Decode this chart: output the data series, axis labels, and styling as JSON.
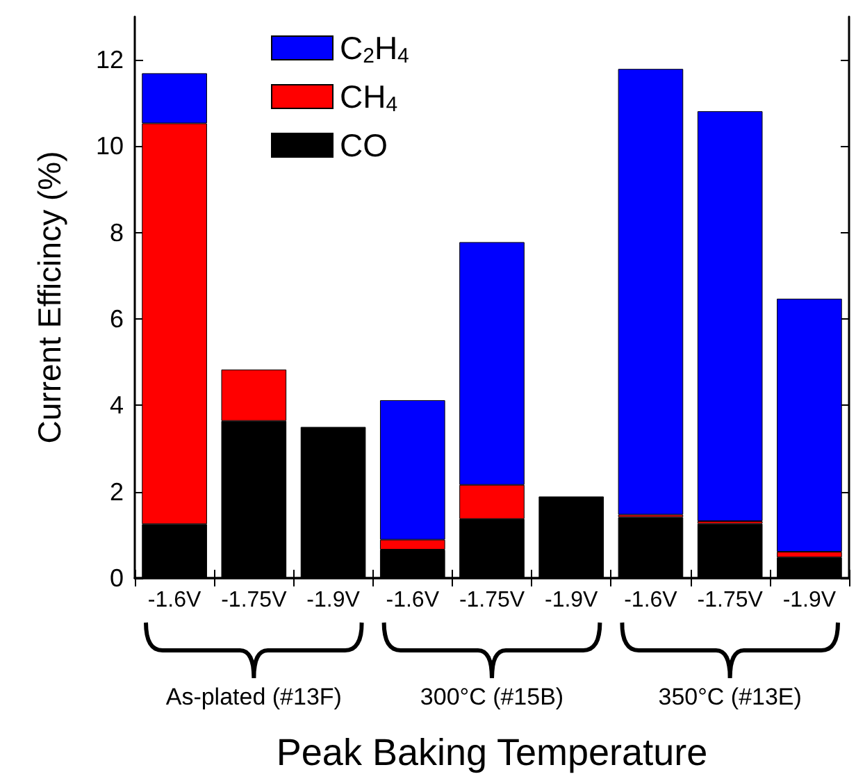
{
  "chart_data": {
    "type": "bar",
    "stacked": true,
    "xlabel": "Peak Baking Temperature",
    "ylabel": "Current Efficincy (%)",
    "categories": [
      "-1.6V",
      "-1.75V",
      "-1.9V",
      "-1.6V",
      "-1.75V",
      "-1.9V",
      "-1.6V",
      "-1.75V",
      "-1.9V"
    ],
    "series": [
      {
        "name": "CO",
        "color": "#000000",
        "values": [
          1.25,
          3.64,
          3.5,
          0.66,
          1.37,
          1.89,
          1.41,
          1.26,
          0.48
        ]
      },
      {
        "name": "CH$_{4}$",
        "color": "#ff0000",
        "values": [
          9.28,
          1.19,
          null,
          0.23,
          0.79,
          null,
          0.06,
          0.06,
          0.13
        ]
      },
      {
        "name": "C$_{2}$H$_{4}$",
        "color": "#0000ff",
        "values": [
          1.16,
          null,
          null,
          3.23,
          5.62,
          null,
          10.32,
          9.49,
          5.86
        ]
      }
    ],
    "ylim": [
      0,
      13
    ],
    "yticks": [
      0,
      2,
      4,
      6,
      8,
      10,
      12
    ],
    "grid": false,
    "legend": "top left",
    "annotations": [
      "As-plated (#13F)",
      "300°C (#15B)",
      "350°C (#13E)"
    ]
  }
}
